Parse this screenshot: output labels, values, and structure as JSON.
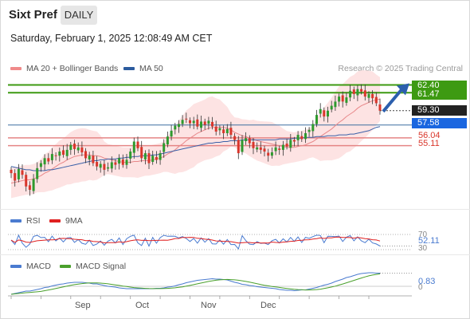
{
  "header": {
    "title": "Sixt Pref",
    "timeframe": "DAILY",
    "datetime": "Saturday, February 1, 2025 12:08:49 AM CET"
  },
  "legend": {
    "ma20": "MA 20 + Bollinger Bands",
    "ma50": "MA 50",
    "rsi": "RSI",
    "rsi_ma": "9MA",
    "macd": "MACD",
    "macd_signal": "MACD Signal"
  },
  "credit": "Research © 2025 Trading Central",
  "colors": {
    "up": "#2e9a2e",
    "down": "#d9362b",
    "ma20": "#e8888a",
    "ma50": "#3a60a8",
    "band": "#fde3e3",
    "resistance": "#3d9a12",
    "pivot": "#3d6ea0",
    "support": "#e58585",
    "arrow": "#2b5fad",
    "macd_signal": "#4aa02c"
  },
  "chart_data": [
    {
      "type": "candlestick",
      "x_axis_labels": [
        "Sep",
        "Oct",
        "Nov",
        "Dec"
      ],
      "ylim": [
        47.5,
        63.5
      ],
      "levels": {
        "resistance": [
          {
            "value": 62.4,
            "label": "62.40"
          },
          {
            "value": 61.47,
            "label": "61.47"
          }
        ],
        "last_price": {
          "value": 59.3,
          "label": "59.30"
        },
        "pivot": {
          "value": 57.58,
          "label": "57.58"
        },
        "support": [
          {
            "value": 56.04,
            "label": "56.04"
          },
          {
            "value": 55.11,
            "label": "55.11"
          }
        ]
      },
      "close": [
        51.8,
        50.9,
        52.3,
        51.6,
        50.2,
        49.8,
        51.1,
        52.4,
        53.0,
        53.6,
        53.2,
        54.1,
        53.9,
        54.4,
        54.0,
        54.6,
        55.2,
        54.7,
        54.9,
        54.3,
        53.6,
        53.9,
        53.0,
        52.6,
        52.9,
        52.2,
        52.5,
        53.1,
        52.8,
        53.6,
        52.8,
        53.4,
        54.4,
        55.6,
        54.8,
        53.6,
        54.2,
        53.0,
        53.9,
        53.4,
        54.2,
        55.4,
        56.2,
        56.9,
        57.5,
        57.7,
        58.2,
        58.3,
        57.8,
        58.1,
        57.4,
        58.0,
        57.6,
        58.1,
        57.4,
        56.8,
        57.2,
        56.6,
        57.1,
        56.4,
        55.8,
        54.2,
        55.8,
        56.0,
        55.4,
        54.8,
        54.9,
        54.6,
        54.4,
        53.9,
        54.3,
        54.9,
        54.6,
        55.2,
        55.0,
        55.8,
        55.6,
        56.4,
        55.9,
        56.6,
        57.0,
        57.7,
        58.8,
        59.5,
        58.6,
        59.3,
        59.9,
        60.4,
        61.0,
        60.4,
        60.9,
        61.7,
        61.3,
        61.9,
        61.6,
        61.0,
        61.3,
        60.8,
        60.2,
        59.3
      ],
      "ma20": [
        50.6,
        50.7,
        50.8,
        50.9,
        51.0,
        51.0,
        51.1,
        51.3,
        51.5,
        51.8,
        52.0,
        52.3,
        52.6,
        52.9,
        53.1,
        53.4,
        53.6,
        53.8,
        53.9,
        54.0,
        54.0,
        54.0,
        53.9,
        53.9,
        53.8,
        53.6,
        53.5,
        53.4,
        53.3,
        53.2,
        53.1,
        53.1,
        53.1,
        53.2,
        53.2,
        53.3,
        53.3,
        53.3,
        53.4,
        53.5,
        53.6,
        53.8,
        54.1,
        54.3,
        54.6,
        55.0,
        55.3,
        55.7,
        56.0,
        56.3,
        56.6,
        56.8,
        57.0,
        57.2,
        57.3,
        57.3,
        57.3,
        57.3,
        57.2,
        57.0,
        56.7,
        56.5,
        56.3,
        56.2,
        56.0,
        55.9,
        55.7,
        55.6,
        55.5,
        55.4,
        55.3,
        55.2,
        55.1,
        55.0,
        54.9,
        54.9,
        54.9,
        55.0,
        55.1,
        55.2,
        55.4,
        55.6,
        55.9,
        56.2,
        56.5,
        56.8,
        57.1,
        57.5,
        57.9,
        58.2,
        58.6,
        58.9,
        59.2,
        59.6,
        59.9,
        60.1,
        60.3,
        60.5,
        60.6,
        60.7
      ],
      "ma50": [
        52.6,
        52.5,
        52.4,
        52.3,
        52.2,
        52.2,
        52.1,
        52.1,
        52.1,
        52.1,
        52.2,
        52.2,
        52.3,
        52.4,
        52.5,
        52.6,
        52.7,
        52.8,
        52.9,
        53.0,
        53.1,
        53.2,
        53.3,
        53.3,
        53.4,
        53.4,
        53.5,
        53.5,
        53.5,
        53.6,
        53.6,
        53.7,
        53.7,
        53.8,
        53.8,
        53.9,
        53.9,
        53.9,
        54.0,
        54.0,
        54.1,
        54.2,
        54.3,
        54.4,
        54.5,
        54.6,
        54.7,
        54.8,
        54.9,
        55.0,
        55.1,
        55.2,
        55.3,
        55.4,
        55.4,
        55.5,
        55.5,
        55.6,
        55.6,
        55.7,
        55.7,
        55.7,
        55.8,
        55.8,
        55.8,
        55.8,
        55.8,
        55.8,
        55.8,
        55.8,
        55.8,
        55.8,
        55.9,
        55.9,
        55.9,
        55.9,
        56.0,
        56.0,
        56.0,
        56.1,
        56.1,
        56.1,
        56.2,
        56.2,
        56.2,
        56.3,
        56.3,
        56.3,
        56.4,
        56.4,
        56.4,
        56.5,
        56.5,
        56.6,
        56.7,
        56.8,
        56.9,
        57.1,
        57.3,
        57.4
      ]
    },
    {
      "type": "line",
      "name": "RSI",
      "ylim": [
        30,
        70
      ],
      "levels": [
        70,
        30
      ],
      "last_label": "52.11"
    },
    {
      "type": "line",
      "name": "MACD",
      "last_label": "0.83",
      "zero_label": "0"
    }
  ]
}
